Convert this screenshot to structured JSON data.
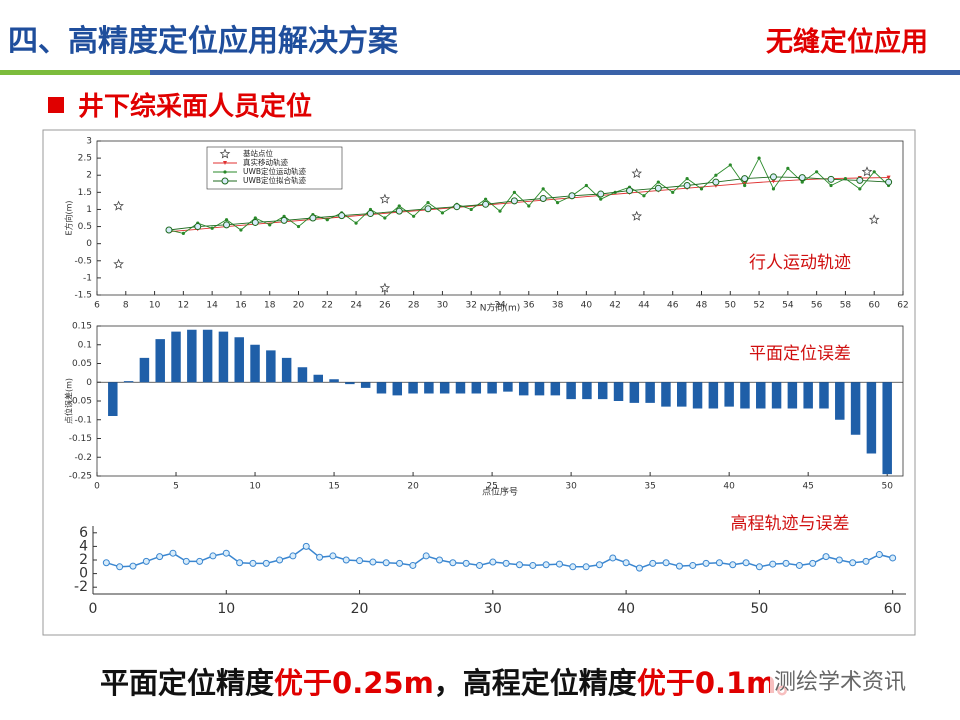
{
  "header": {
    "title": "四、高精度定位应用解决方案",
    "tag": "无缝定位应用",
    "subtitle": "井下综采面人员定位"
  },
  "chart_data": [
    {
      "type": "line",
      "annotation": "行人运动轨迹",
      "xlabel": "N方向(m)",
      "ylabel": "E方向(m)",
      "legend": "upper-left",
      "xlim": [
        6,
        62
      ],
      "ylim": [
        -1.5,
        3
      ],
      "xticks": [
        6,
        8,
        10,
        12,
        14,
        16,
        18,
        20,
        22,
        24,
        26,
        28,
        30,
        32,
        34,
        36,
        38,
        40,
        42,
        44,
        46,
        48,
        50,
        52,
        54,
        56,
        58,
        60,
        62
      ],
      "yticks": [
        -1.5,
        -1,
        -0.5,
        0,
        0.5,
        1,
        1.5,
        2,
        2.5,
        3
      ],
      "series": [
        {
          "name": "基站点位",
          "color": "#444444",
          "mode": "markers",
          "marker": "star",
          "x": [
            7.5,
            7.5,
            26,
            26,
            43.5,
            43.5,
            60,
            59.5
          ],
          "values": [
            1.1,
            -0.6,
            1.3,
            -1.3,
            2.05,
            0.8,
            0.7,
            2.1
          ]
        },
        {
          "name": "真实移动轨迹",
          "color": "#e03030",
          "mode": "line",
          "marker": "triangle",
          "x": [
            11,
            13,
            15,
            17,
            19,
            21,
            23,
            25,
            27,
            29,
            31,
            33,
            35,
            37,
            39,
            41,
            43,
            45,
            47,
            49,
            51,
            53,
            55,
            57,
            59,
            61
          ],
          "values": [
            0.35,
            0.42,
            0.5,
            0.57,
            0.64,
            0.71,
            0.78,
            0.85,
            0.92,
            0.99,
            1.06,
            1.13,
            1.2,
            1.27,
            1.34,
            1.41,
            1.48,
            1.55,
            1.62,
            1.69,
            1.76,
            1.82,
            1.87,
            1.9,
            1.92,
            1.93
          ]
        },
        {
          "name": "UWB定位运动轨迹",
          "color": "#2a8a2a",
          "mode": "line",
          "marker": "dot",
          "x": [
            11,
            12,
            13,
            14,
            15,
            16,
            17,
            18,
            19,
            20,
            21,
            22,
            23,
            24,
            25,
            26,
            27,
            28,
            29,
            30,
            31,
            32,
            33,
            34,
            35,
            36,
            37,
            38,
            39,
            40,
            41,
            42,
            43,
            44,
            45,
            46,
            47,
            48,
            49,
            50,
            51,
            52,
            53,
            54,
            55,
            56,
            57,
            58,
            59,
            60,
            61
          ],
          "values": [
            0.4,
            0.3,
            0.6,
            0.45,
            0.7,
            0.4,
            0.75,
            0.55,
            0.8,
            0.5,
            0.85,
            0.7,
            0.9,
            0.6,
            1.0,
            0.75,
            1.1,
            0.8,
            1.2,
            0.9,
            1.15,
            1.0,
            1.3,
            0.95,
            1.5,
            1.1,
            1.6,
            1.2,
            1.4,
            1.7,
            1.3,
            1.5,
            1.65,
            1.4,
            1.8,
            1.5,
            1.9,
            1.6,
            2.0,
            2.3,
            1.7,
            2.5,
            1.6,
            2.2,
            1.8,
            2.1,
            1.7,
            1.9,
            1.6,
            2.1,
            1.7
          ]
        },
        {
          "name": "UWB定位拟合轨迹",
          "color": "#1e6a1e",
          "mode": "line",
          "marker": "circle",
          "x": [
            11,
            13,
            15,
            17,
            19,
            21,
            23,
            25,
            27,
            29,
            31,
            33,
            35,
            37,
            39,
            41,
            43,
            45,
            47,
            49,
            51,
            53,
            55,
            57,
            59,
            61
          ],
          "values": [
            0.4,
            0.5,
            0.55,
            0.62,
            0.68,
            0.75,
            0.82,
            0.88,
            0.95,
            1.02,
            1.08,
            1.15,
            1.25,
            1.32,
            1.4,
            1.45,
            1.55,
            1.62,
            1.7,
            1.8,
            1.9,
            1.95,
            1.93,
            1.88,
            1.85,
            1.8
          ]
        }
      ]
    },
    {
      "type": "bar",
      "annotation": "平面定位误差",
      "xlabel": "点位序号",
      "ylabel": "点位误差(m)",
      "color": "#1f5fa8",
      "xlim": [
        0,
        51
      ],
      "ylim": [
        -0.25,
        0.15
      ],
      "xticks": [
        0,
        5,
        10,
        15,
        20,
        25,
        30,
        35,
        40,
        45,
        50
      ],
      "yticks": [
        -0.25,
        -0.2,
        -0.15,
        -0.1,
        -0.05,
        0,
        0.05,
        0.1,
        0.15
      ],
      "x": [
        1,
        2,
        3,
        4,
        5,
        6,
        7,
        8,
        9,
        10,
        11,
        12,
        13,
        14,
        15,
        16,
        17,
        18,
        19,
        20,
        21,
        22,
        23,
        24,
        25,
        26,
        27,
        28,
        29,
        30,
        31,
        32,
        33,
        34,
        35,
        36,
        37,
        38,
        39,
        40,
        41,
        42,
        43,
        44,
        45,
        46,
        47,
        48,
        49,
        50
      ],
      "values": [
        -0.09,
        0.003,
        0.065,
        0.115,
        0.135,
        0.14,
        0.14,
        0.135,
        0.12,
        0.1,
        0.085,
        0.065,
        0.04,
        0.02,
        0.008,
        -0.005,
        -0.015,
        -0.03,
        -0.035,
        -0.03,
        -0.03,
        -0.03,
        -0.03,
        -0.03,
        -0.03,
        -0.025,
        -0.035,
        -0.035,
        -0.035,
        -0.045,
        -0.045,
        -0.045,
        -0.05,
        -0.055,
        -0.055,
        -0.065,
        -0.065,
        -0.07,
        -0.07,
        -0.065,
        -0.07,
        -0.07,
        -0.07,
        -0.07,
        -0.07,
        -0.07,
        -0.1,
        -0.14,
        -0.19,
        -0.245
      ]
    },
    {
      "type": "line",
      "annotation": "高程轨迹与误差",
      "xlim": [
        0,
        61
      ],
      "ylim": [
        -3,
        7
      ],
      "xticks": [
        0,
        10,
        20,
        30,
        40,
        50,
        60
      ],
      "yticks": [
        -2,
        0,
        2,
        4,
        6
      ],
      "series": [
        {
          "color": "#3a86d0",
          "mode": "line",
          "marker": "circle",
          "x": [
            1,
            2,
            3,
            4,
            5,
            6,
            7,
            8,
            9,
            10,
            11,
            12,
            13,
            14,
            15,
            16,
            17,
            18,
            19,
            20,
            21,
            22,
            23,
            24,
            25,
            26,
            27,
            28,
            29,
            30,
            31,
            32,
            33,
            34,
            35,
            36,
            37,
            38,
            39,
            40,
            41,
            42,
            43,
            44,
            45,
            46,
            47,
            48,
            49,
            50,
            51,
            52,
            53,
            54,
            55,
            56,
            57,
            58,
            59,
            60
          ],
          "values": [
            1.6,
            1.0,
            1.1,
            1.8,
            2.5,
            3.0,
            1.8,
            1.8,
            2.6,
            3.0,
            1.6,
            1.5,
            1.5,
            2.0,
            2.6,
            4.0,
            2.4,
            2.6,
            2.0,
            1.9,
            1.7,
            1.6,
            1.5,
            1.2,
            2.6,
            2.0,
            1.6,
            1.5,
            1.2,
            1.7,
            1.5,
            1.3,
            1.2,
            1.3,
            1.4,
            1.0,
            1.0,
            1.3,
            2.3,
            1.6,
            0.8,
            1.5,
            1.6,
            1.1,
            1.2,
            1.5,
            1.6,
            1.3,
            1.6,
            1.0,
            1.4,
            1.5,
            1.2,
            1.5,
            2.5,
            2.0,
            1.6,
            1.8,
            2.8,
            2.3
          ]
        }
      ]
    }
  ],
  "footer": {
    "segments": [
      "平面定位精度",
      "优于0.25m",
      "，高程定位精度",
      "优于0.1m。"
    ]
  },
  "watermark": "测绘学术资讯"
}
